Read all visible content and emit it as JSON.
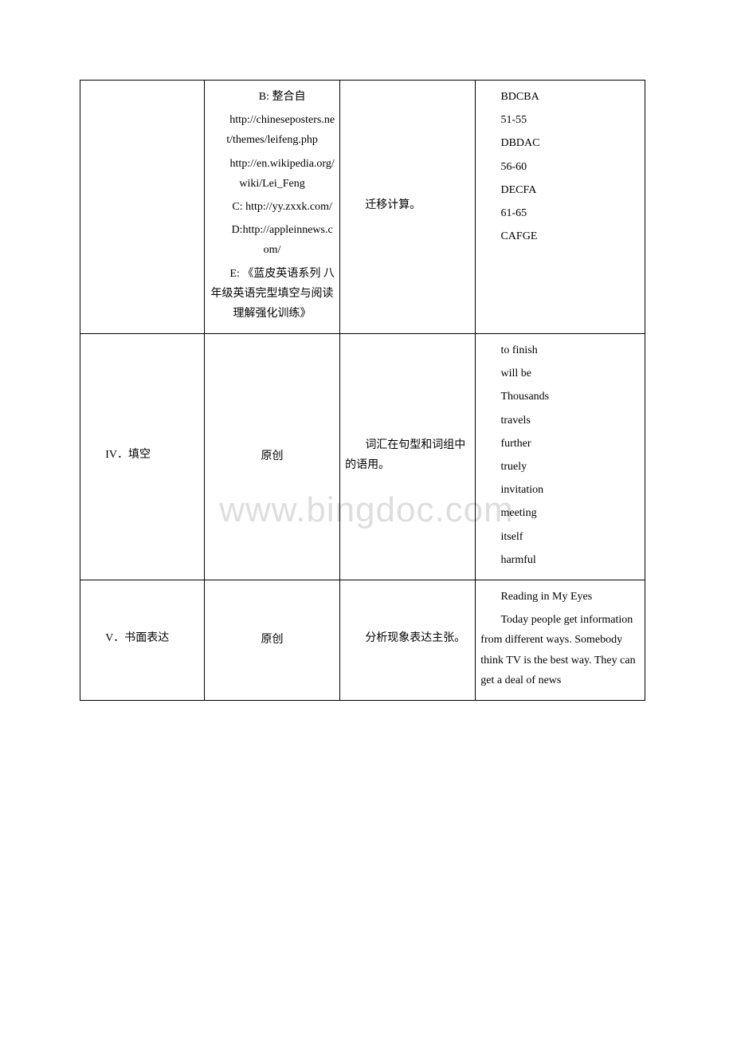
{
  "watermark": "www.bingdoc.com",
  "row1": {
    "col1": "",
    "col2": {
      "lines": [
        "B: 整合自",
        "http://chineseposters.net/themes/leifeng.php",
        "http://en.wikipedia.org/wiki/Lei_Feng",
        "C: http://yy.zxxk.com/",
        "D:http://appleinnews.com/",
        "E: 《蓝皮英语系列 八年级英语完型填空与阅读理解强化训练》"
      ]
    },
    "col3": "迁移计算。",
    "col4": {
      "lines": [
        "BDCBA",
        "51-55",
        "DBDAC",
        "56-60",
        "DECFA",
        "61-65",
        "CAFGE"
      ]
    }
  },
  "row2": {
    "col1": "IV．填空",
    "col2": "原创",
    "col3": "词汇在句型和词组中的语用。",
    "col4": {
      "lines": [
        "to finish",
        "will be",
        "Thousands",
        "travels",
        "further",
        "truely",
        "invitation",
        "meeting",
        "itself",
        "harmful"
      ]
    }
  },
  "row3": {
    "col1": "V．书面表达",
    "col2": "原创",
    "col3": "分析现象表达主张。",
    "col4": {
      "title": "Reading in My Eyes",
      "body": "Today people get information from different ways. Somebody think TV is the best way. They can get a deal of news"
    }
  }
}
